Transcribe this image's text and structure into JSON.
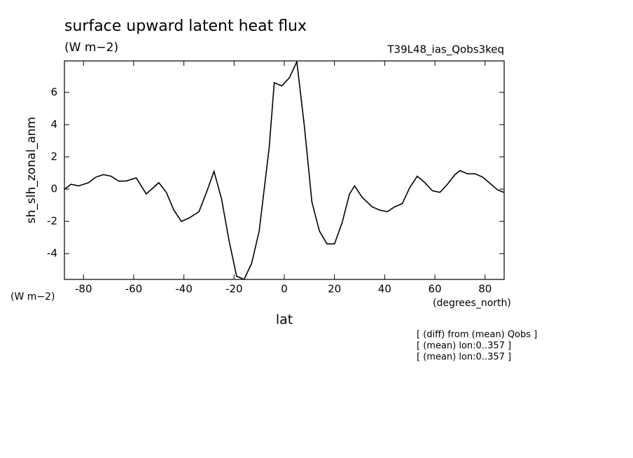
{
  "chart_data": {
    "type": "line",
    "title": "surface upward latent heat flux",
    "subtitle": "(W m−2)",
    "run_label": "T39L48_ias_Qobs3keq",
    "y_label": "sh_slh_zonal_anm",
    "y_units": "(W m−2)",
    "x_units": "(degrees_north)",
    "x_label": "lat",
    "notes": [
      "[ (diff) from (mean) Qobs ]",
      "[ (mean) lon:0..357 ]",
      "[ (mean) lon:0..357 ]"
    ],
    "color": "#000000",
    "x": [
      -87.5,
      -85,
      -82,
      -78,
      -75,
      -72,
      -69,
      -66,
      -63,
      -59,
      -55,
      -50,
      -47,
      -44,
      -41,
      -38,
      -34,
      -31,
      -28,
      -25,
      -22,
      -19,
      -16,
      -13,
      -10,
      -6,
      -4,
      -1,
      2,
      5,
      8,
      11,
      14,
      17,
      20,
      23,
      26,
      28,
      31,
      35,
      38,
      41,
      44,
      47,
      50,
      53,
      56,
      59,
      62,
      65,
      68,
      70,
      73,
      76,
      79,
      82,
      85,
      87.5
    ],
    "values": [
      0.0,
      0.3,
      0.2,
      0.4,
      0.75,
      0.9,
      0.8,
      0.5,
      0.5,
      0.7,
      -0.3,
      0.4,
      -0.2,
      -1.3,
      -2.0,
      -1.8,
      -1.4,
      -0.2,
      1.1,
      -0.6,
      -3.2,
      -5.4,
      -5.6,
      -4.6,
      -2.6,
      2.6,
      6.6,
      6.4,
      6.9,
      7.9,
      3.9,
      -0.8,
      -2.6,
      -3.4,
      -3.4,
      -2.1,
      -0.3,
      0.2,
      -0.5,
      -1.1,
      -1.3,
      -1.4,
      -1.1,
      -0.9,
      0.1,
      0.8,
      0.4,
      -0.1,
      -0.2,
      0.3,
      0.9,
      1.15,
      0.95,
      0.95,
      0.75,
      0.35,
      -0.05,
      -0.2
    ],
    "xlim": [
      -87.6,
      87.6
    ],
    "xticks": [
      -80,
      -60,
      -40,
      -20,
      0,
      20,
      40,
      60,
      80
    ],
    "ylim": [
      -5.6,
      7.95
    ],
    "yticks": [
      -4,
      -2,
      0,
      2,
      4,
      6
    ]
  }
}
